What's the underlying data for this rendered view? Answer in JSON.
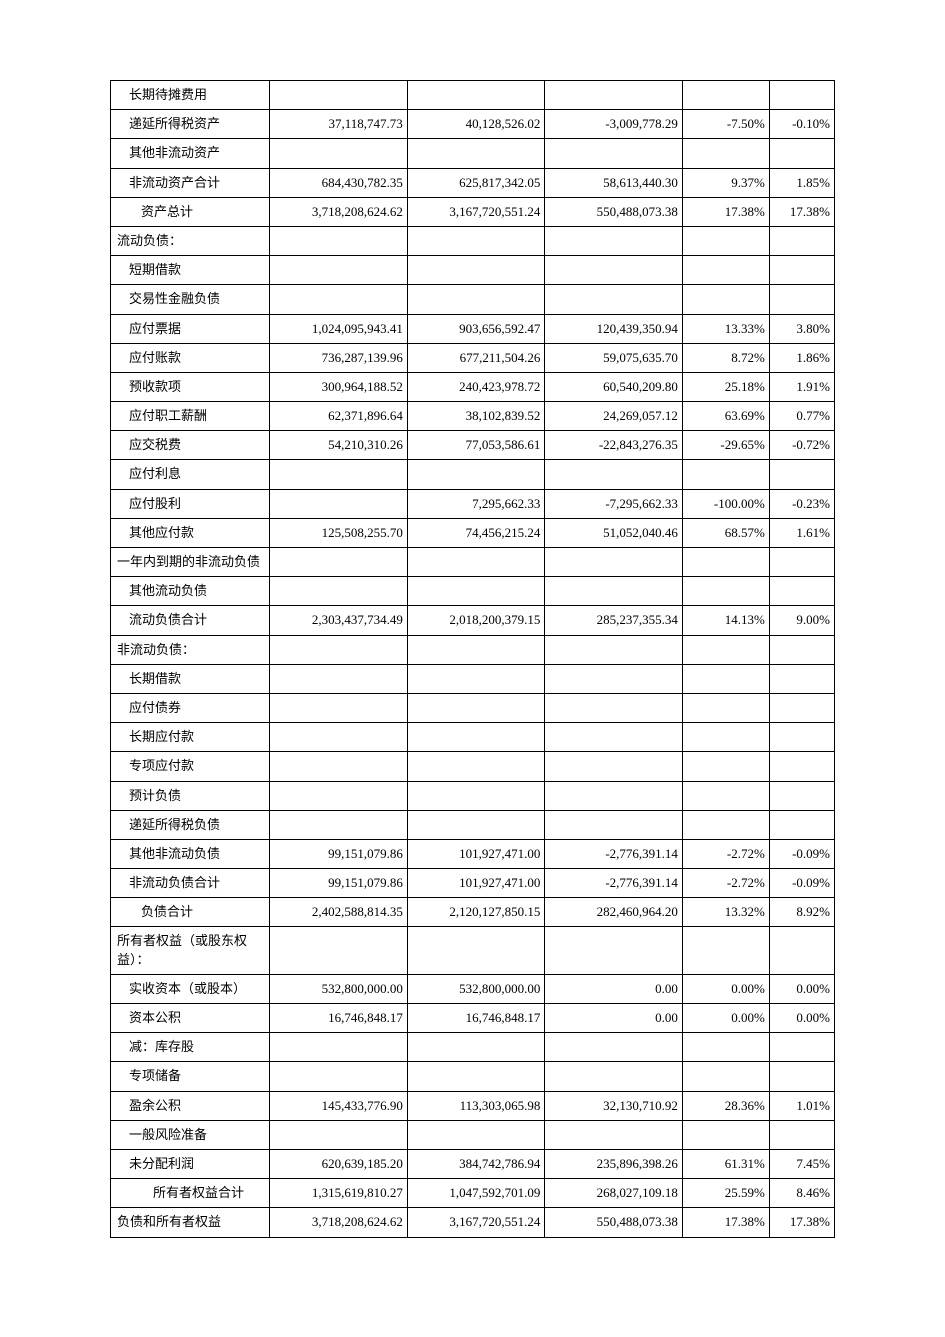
{
  "table": {
    "column_widths": [
      "22%",
      "19%",
      "19%",
      "19%",
      "12%",
      "9%"
    ],
    "border_color": "#000000",
    "background_color": "#ffffff",
    "text_color": "#000000",
    "font_size": 13,
    "rows": [
      {
        "label": "长期待摊费用",
        "indent": 1,
        "c1": "",
        "c2": "",
        "c3": "",
        "c4": "",
        "c5": ""
      },
      {
        "label": "递延所得税资产",
        "indent": 1,
        "c1": "37,118,747.73",
        "c2": "40,128,526.02",
        "c3": "-3,009,778.29",
        "c4": "-7.50%",
        "c5": "-0.10%"
      },
      {
        "label": "其他非流动资产",
        "indent": 1,
        "c1": "",
        "c2": "",
        "c3": "",
        "c4": "",
        "c5": ""
      },
      {
        "label": "非流动资产合计",
        "indent": 1,
        "c1": "684,430,782.35",
        "c2": "625,817,342.05",
        "c3": "58,613,440.30",
        "c4": "9.37%",
        "c5": "1.85%"
      },
      {
        "label": "资产总计",
        "indent": 2,
        "c1": "3,718,208,624.62",
        "c2": "3,167,720,551.24",
        "c3": "550,488,073.38",
        "c4": "17.38%",
        "c5": "17.38%"
      },
      {
        "label": "流动负债：",
        "indent": 0,
        "c1": "",
        "c2": "",
        "c3": "",
        "c4": "",
        "c5": ""
      },
      {
        "label": "短期借款",
        "indent": 1,
        "c1": "",
        "c2": "",
        "c3": "",
        "c4": "",
        "c5": ""
      },
      {
        "label": "交易性金融负债",
        "indent": 1,
        "c1": "",
        "c2": "",
        "c3": "",
        "c4": "",
        "c5": ""
      },
      {
        "label": "应付票据",
        "indent": 1,
        "c1": "1,024,095,943.41",
        "c2": "903,656,592.47",
        "c3": "120,439,350.94",
        "c4": "13.33%",
        "c5": "3.80%"
      },
      {
        "label": "应付账款",
        "indent": 1,
        "c1": "736,287,139.96",
        "c2": "677,211,504.26",
        "c3": "59,075,635.70",
        "c4": "8.72%",
        "c5": "1.86%"
      },
      {
        "label": "预收款项",
        "indent": 1,
        "c1": "300,964,188.52",
        "c2": "240,423,978.72",
        "c3": "60,540,209.80",
        "c4": "25.18%",
        "c5": "1.91%"
      },
      {
        "label": "应付职工薪酬",
        "indent": 1,
        "c1": "62,371,896.64",
        "c2": "38,102,839.52",
        "c3": "24,269,057.12",
        "c4": "63.69%",
        "c5": "0.77%"
      },
      {
        "label": "应交税费",
        "indent": 1,
        "c1": "54,210,310.26",
        "c2": "77,053,586.61",
        "c3": "-22,843,276.35",
        "c4": "-29.65%",
        "c5": "-0.72%"
      },
      {
        "label": "应付利息",
        "indent": 1,
        "c1": "",
        "c2": "",
        "c3": "",
        "c4": "",
        "c5": ""
      },
      {
        "label": "应付股利",
        "indent": 1,
        "c1": "",
        "c2": "7,295,662.33",
        "c3": "-7,295,662.33",
        "c4": "-100.00%",
        "c5": "-0.23%"
      },
      {
        "label": "其他应付款",
        "indent": 1,
        "c1": "125,508,255.70",
        "c2": "74,456,215.24",
        "c3": "51,052,040.46",
        "c4": "68.57%",
        "c5": "1.61%"
      },
      {
        "label": "一年内到期的非流动负债",
        "indent": 0,
        "c1": "",
        "c2": "",
        "c3": "",
        "c4": "",
        "c5": ""
      },
      {
        "label": "其他流动负债",
        "indent": 1,
        "c1": "",
        "c2": "",
        "c3": "",
        "c4": "",
        "c5": ""
      },
      {
        "label": "流动负债合计",
        "indent": 1,
        "c1": "2,303,437,734.49",
        "c2": "2,018,200,379.15",
        "c3": "285,237,355.34",
        "c4": "14.13%",
        "c5": "9.00%"
      },
      {
        "label": "非流动负债：",
        "indent": 0,
        "c1": "",
        "c2": "",
        "c3": "",
        "c4": "",
        "c5": ""
      },
      {
        "label": "长期借款",
        "indent": 1,
        "c1": "",
        "c2": "",
        "c3": "",
        "c4": "",
        "c5": ""
      },
      {
        "label": "应付债券",
        "indent": 1,
        "c1": "",
        "c2": "",
        "c3": "",
        "c4": "",
        "c5": ""
      },
      {
        "label": "长期应付款",
        "indent": 1,
        "c1": "",
        "c2": "",
        "c3": "",
        "c4": "",
        "c5": ""
      },
      {
        "label": "专项应付款",
        "indent": 1,
        "c1": "",
        "c2": "",
        "c3": "",
        "c4": "",
        "c5": ""
      },
      {
        "label": "预计负债",
        "indent": 1,
        "c1": "",
        "c2": "",
        "c3": "",
        "c4": "",
        "c5": ""
      },
      {
        "label": "递延所得税负债",
        "indent": 1,
        "c1": "",
        "c2": "",
        "c3": "",
        "c4": "",
        "c5": ""
      },
      {
        "label": "其他非流动负债",
        "indent": 1,
        "c1": "99,151,079.86",
        "c2": "101,927,471.00",
        "c3": "-2,776,391.14",
        "c4": "-2.72%",
        "c5": "-0.09%"
      },
      {
        "label": "非流动负债合计",
        "indent": 1,
        "c1": "99,151,079.86",
        "c2": "101,927,471.00",
        "c3": "-2,776,391.14",
        "c4": "-2.72%",
        "c5": "-0.09%"
      },
      {
        "label": "负债合计",
        "indent": 2,
        "c1": "2,402,588,814.35",
        "c2": "2,120,127,850.15",
        "c3": "282,460,964.20",
        "c4": "13.32%",
        "c5": "8.92%"
      },
      {
        "label": "所有者权益（或股东权益）：",
        "indent": 0,
        "c1": "",
        "c2": "",
        "c3": "",
        "c4": "",
        "c5": ""
      },
      {
        "label": "实收资本（或股本）",
        "indent": 1,
        "c1": "532,800,000.00",
        "c2": "532,800,000.00",
        "c3": "0.00",
        "c4": "0.00%",
        "c5": "0.00%"
      },
      {
        "label": "资本公积",
        "indent": 1,
        "c1": "16,746,848.17",
        "c2": "16,746,848.17",
        "c3": "0.00",
        "c4": "0.00%",
        "c5": "0.00%"
      },
      {
        "label": "减：库存股",
        "indent": 1,
        "c1": "",
        "c2": "",
        "c3": "",
        "c4": "",
        "c5": ""
      },
      {
        "label": "专项储备",
        "indent": 1,
        "c1": "",
        "c2": "",
        "c3": "",
        "c4": "",
        "c5": ""
      },
      {
        "label": "盈余公积",
        "indent": 1,
        "c1": "145,433,776.90",
        "c2": "113,303,065.98",
        "c3": "32,130,710.92",
        "c4": "28.36%",
        "c5": "1.01%"
      },
      {
        "label": "一般风险准备",
        "indent": 1,
        "c1": "",
        "c2": "",
        "c3": "",
        "c4": "",
        "c5": ""
      },
      {
        "label": "未分配利润",
        "indent": 1,
        "c1": "620,639,185.20",
        "c2": "384,742,786.94",
        "c3": "235,896,398.26",
        "c4": "61.31%",
        "c5": "7.45%"
      },
      {
        "label": "所有者权益合计",
        "indent": 3,
        "c1": "1,315,619,810.27",
        "c2": "1,047,592,701.09",
        "c3": "268,027,109.18",
        "c4": "25.59%",
        "c5": "8.46%"
      },
      {
        "label": "负债和所有者权益",
        "indent": 0,
        "c1": "3,718,208,624.62",
        "c2": "3,167,720,551.24",
        "c3": "550,488,073.38",
        "c4": "17.38%",
        "c5": "17.38%"
      }
    ]
  }
}
